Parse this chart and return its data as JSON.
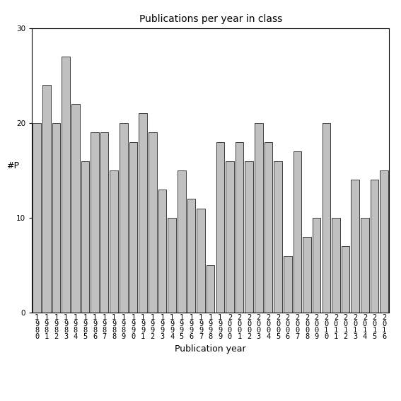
{
  "title": "Publications per year in class",
  "xlabel": "Publication year",
  "ylabel": "#P",
  "bar_color": "#c0c0c0",
  "bar_edge_color": "#000000",
  "ylim": [
    0,
    30
  ],
  "yticks": [
    0,
    10,
    20,
    30
  ],
  "categories": [
    "1980",
    "1981",
    "1982",
    "1983",
    "1984",
    "1985",
    "1986",
    "1987",
    "1988",
    "1989",
    "1990",
    "1991",
    "1992",
    "1993",
    "1994",
    "1995",
    "1996",
    "1997",
    "1998",
    "1999",
    "2000",
    "2001",
    "2002",
    "2003",
    "2004",
    "2005",
    "2006",
    "2007",
    "2008",
    "2009",
    "2010",
    "2011",
    "2012",
    "2013",
    "2014",
    "2015",
    "2016"
  ],
  "values": [
    20,
    24,
    20,
    27,
    22,
    16,
    19,
    19,
    15,
    20,
    18,
    21,
    19,
    13,
    10,
    15,
    12,
    11,
    5,
    18,
    16,
    18,
    16,
    20,
    18,
    16,
    6,
    17,
    8,
    10,
    20,
    10,
    7,
    14,
    10,
    14,
    15
  ],
  "background_color": "#ffffff",
  "title_fontsize": 10,
  "label_fontsize": 9,
  "tick_fontsize": 7.5
}
